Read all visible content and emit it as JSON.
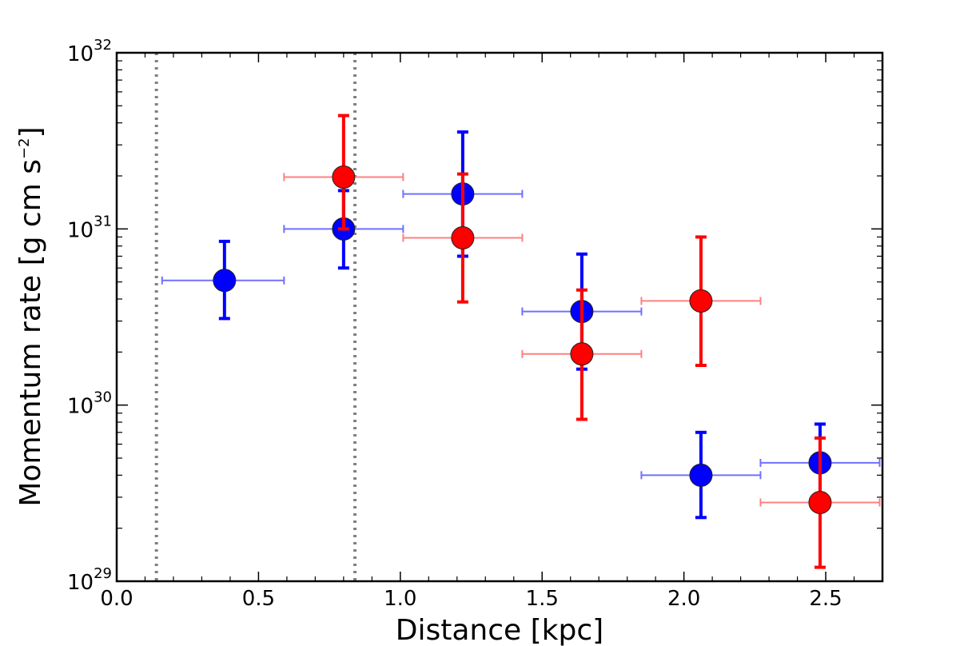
{
  "chart_data": {
    "type": "scatter",
    "title": "",
    "xlabel": "Distance [kpc]",
    "ylabel": "Momentum rate [g cm s",
    "ylabel_sup": "−2",
    "ylabel_end": "]",
    "xlim": [
      0.0,
      2.7
    ],
    "ylim": [
      1e+29,
      1e+32
    ],
    "yscale": "log",
    "x_ticks": [
      {
        "value": 0.0,
        "label": "0.0"
      },
      {
        "value": 0.5,
        "label": "0.5"
      },
      {
        "value": 1.0,
        "label": "1.0"
      },
      {
        "value": 1.5,
        "label": "1.5"
      },
      {
        "value": 2.0,
        "label": "2.0"
      },
      {
        "value": 2.5,
        "label": "2.5"
      }
    ],
    "y_ticks": [
      {
        "value": 1e+29,
        "base": "10",
        "exp": "29"
      },
      {
        "value": 1e+30,
        "base": "10",
        "exp": "30"
      },
      {
        "value": 1e+31,
        "base": "10",
        "exp": "31"
      },
      {
        "value": 1e+32,
        "base": "10",
        "exp": "32"
      }
    ],
    "vlines": [
      0.14,
      0.84
    ],
    "series": [
      {
        "name": "blue",
        "color": "#0000ff",
        "xerr_color": "#7070ff",
        "points": [
          {
            "x": 0.38,
            "y": 5.1e+30,
            "xlo": 0.16,
            "xhi": 0.59,
            "ylo": 3.1e+30,
            "yhi": 8.5e+30
          },
          {
            "x": 0.8,
            "y": 1e+31,
            "xlo": 0.59,
            "xhi": 1.01,
            "ylo": 6e+30,
            "yhi": 1.65e+31
          },
          {
            "x": 1.22,
            "y": 1.58e+31,
            "xlo": 1.01,
            "xhi": 1.43,
            "ylo": 7e+30,
            "yhi": 3.55e+31
          },
          {
            "x": 1.64,
            "y": 3.4e+30,
            "xlo": 1.43,
            "xhi": 1.85,
            "ylo": 1.6e+30,
            "yhi": 7.2e+30
          },
          {
            "x": 2.06,
            "y": 4e+29,
            "xlo": 1.85,
            "xhi": 2.27,
            "ylo": 2.3e+29,
            "yhi": 7e+29
          },
          {
            "x": 2.48,
            "y": 4.7e+29,
            "xlo": 2.27,
            "xhi": 2.69,
            "ylo": 2.85e+29,
            "yhi": 7.8e+29
          }
        ]
      },
      {
        "name": "red",
        "color": "#ff0000",
        "xerr_color": "#ff8080",
        "points": [
          {
            "x": 0.8,
            "y": 1.97e+31,
            "xlo": 0.59,
            "xhi": 1.01,
            "ylo": 1e+31,
            "yhi": 4.4e+31
          },
          {
            "x": 1.22,
            "y": 8.9e+30,
            "xlo": 1.01,
            "xhi": 1.43,
            "ylo": 3.85e+30,
            "yhi": 2.05e+31
          },
          {
            "x": 1.64,
            "y": 1.95e+30,
            "xlo": 1.43,
            "xhi": 1.85,
            "ylo": 8.3e+29,
            "yhi": 4.5e+30
          },
          {
            "x": 2.06,
            "y": 3.9e+30,
            "xlo": 1.85,
            "xhi": 2.27,
            "ylo": 1.68e+30,
            "yhi": 9e+30
          },
          {
            "x": 2.48,
            "y": 2.8e+29,
            "xlo": 2.27,
            "xhi": 2.69,
            "ylo": 1.2e+29,
            "yhi": 6.5e+29
          }
        ]
      }
    ]
  }
}
